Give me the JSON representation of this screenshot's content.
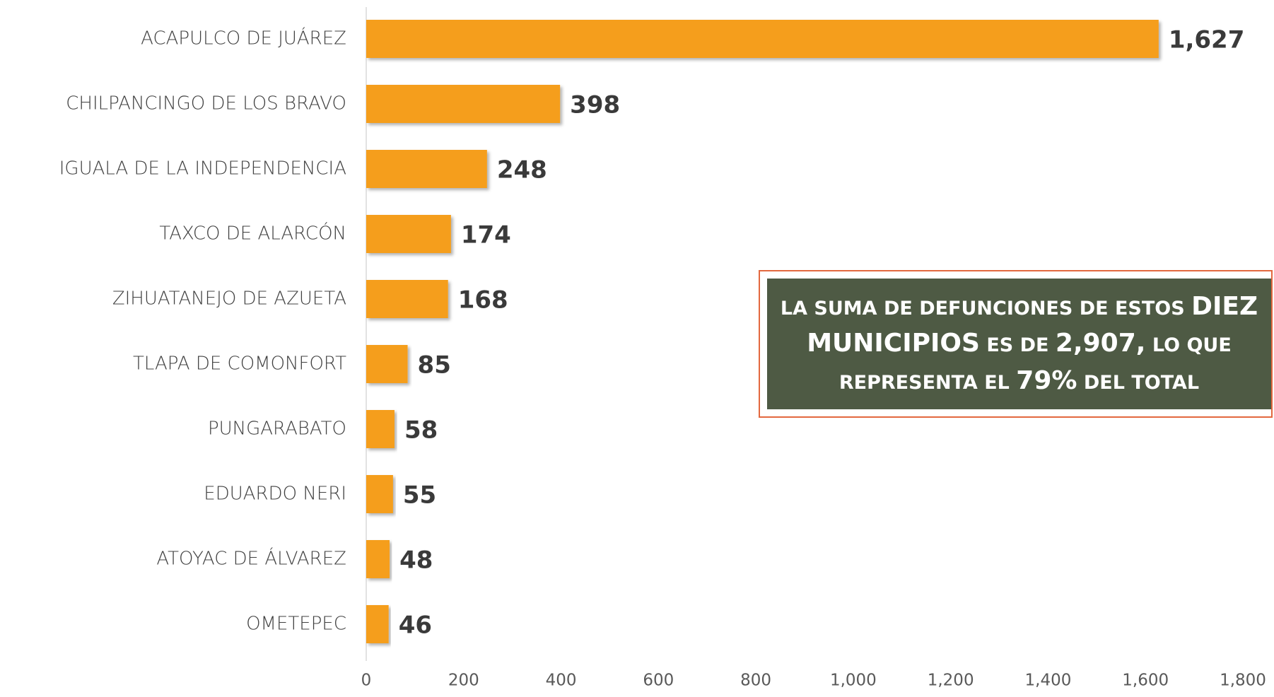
{
  "chart_data": {
    "type": "bar",
    "orientation": "horizontal",
    "categories": [
      "ACAPULCO DE JUÁREZ",
      "CHILPANCINGO DE LOS BRAVO",
      "IGUALA DE LA INDEPENDENCIA",
      "TAXCO DE ALARCÓN",
      "ZIHUATANEJO DE AZUETA",
      "TLAPA DE COMONFORT",
      "PUNGARABATO",
      "EDUARDO NERI",
      "ATOYAC DE ÁLVAREZ",
      "OMETEPEC"
    ],
    "values": [
      1627,
      398,
      248,
      174,
      168,
      85,
      58,
      55,
      48,
      46
    ],
    "value_labels": [
      "1,627",
      "398",
      "248",
      "174",
      "168",
      "85",
      "58",
      "55",
      "48",
      "46"
    ],
    "color": "#f59e1a",
    "xlim": [
      0,
      1800
    ],
    "xticks": [
      0,
      200,
      400,
      600,
      800,
      {
        "value": 1000,
        "label": "1,000"
      },
      {
        "value": 1200,
        "label": "1,200"
      },
      {
        "value": 1400,
        "label": "1,400"
      },
      {
        "value": 1600,
        "label": "1,600"
      },
      {
        "value": 1800,
        "label": "1,800"
      }
    ],
    "annotation": [
      {
        "text": "LA SUMA DE DEFUNCIONES DE ESTOS",
        "emphasis": false
      },
      {
        "text": "DIEZ MUNICIPIOS",
        "emphasis": true
      },
      {
        "text": "ES DE",
        "emphasis": false
      },
      {
        "text": "2,907,",
        "emphasis": true
      },
      {
        "text": "LO QUE REPRESENTA EL",
        "emphasis": false
      },
      {
        "text": "79%",
        "emphasis": true
      },
      {
        "text": "DEL TOTAL",
        "emphasis": false
      }
    ]
  }
}
